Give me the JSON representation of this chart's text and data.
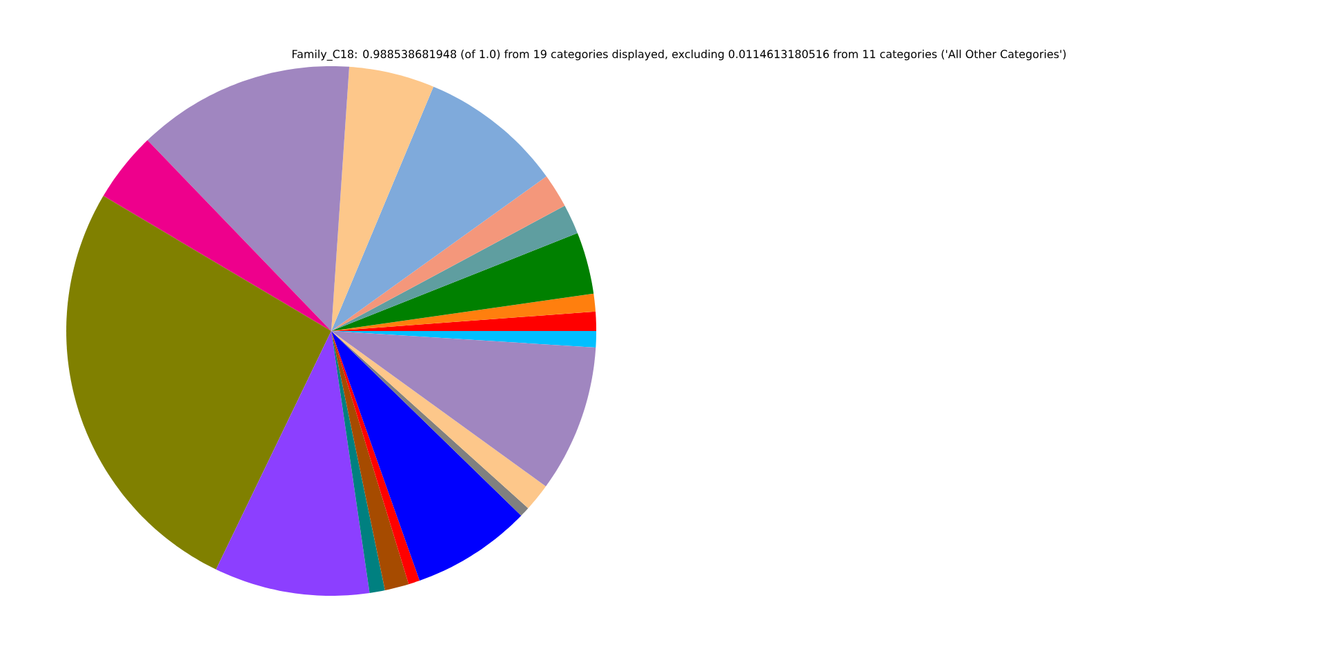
{
  "chart_data": {
    "type": "pie",
    "title": "Family_C18: 0.988538681948 (of 1.0) from 19 categories displayed, excluding 0.0114613180516 from 11 categories ('All Other Categories')",
    "categories": [
      null,
      null,
      null,
      null,
      null,
      null,
      null,
      null,
      null,
      null,
      null,
      null,
      null,
      null,
      null,
      null,
      null,
      null,
      null
    ],
    "values": [
      1.0,
      1.17,
      1.08,
      3.78,
      1.81,
      2.08,
      8.78,
      5.22,
      13.28,
      4.28,
      26.36,
      9.47,
      0.94,
      1.47,
      0.69,
      7.31,
      0.61,
      1.69,
      8.98
    ],
    "colors": [
      "#00bfff",
      "#ff0000",
      "#ff7f0e",
      "#008000",
      "#5f9ea0",
      "#f4977b",
      "#7faadb",
      "#fdc78a",
      "#a086c0",
      "#ee008c",
      "#808000",
      "#8c3fff",
      "#008080",
      "#a64b00",
      "#ff0000",
      "#0000ff",
      "#808080",
      "#fdc78a",
      "#a086c0"
    ]
  }
}
